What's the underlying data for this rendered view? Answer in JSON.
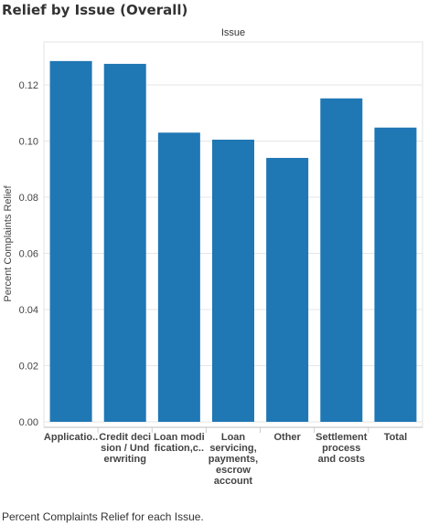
{
  "title": "Relief by Issue (Overall)",
  "column_header": "Issue",
  "caption": "Percent Complaints Relief for each Issue.",
  "colors": {
    "bar": "#1f77b4",
    "grid": "#e6e6e6",
    "axis": "#bdbdbd"
  },
  "chart_data": {
    "type": "bar",
    "title": "Relief by Issue (Overall)",
    "xlabel": "Issue",
    "ylabel": "Percent Complaints Relief",
    "ylim": [
      0,
      0.13
    ],
    "yticks": [
      "0.00",
      "0.02",
      "0.04",
      "0.06",
      "0.08",
      "0.10",
      "0.12"
    ],
    "yticks_values": [
      0,
      0.02,
      0.04,
      0.06,
      0.08,
      0.1,
      0.12
    ],
    "categories": [
      "Applicatio..",
      "Credit deci sion / Und erwriting",
      "Loan modi fication,c..",
      "Loan servicing, payments, escrow account",
      "Other",
      "Settlement process and costs",
      "Total"
    ],
    "values": [
      0.1285,
      0.1275,
      0.103,
      0.1005,
      0.094,
      0.1152,
      0.1048
    ],
    "grid": true
  }
}
